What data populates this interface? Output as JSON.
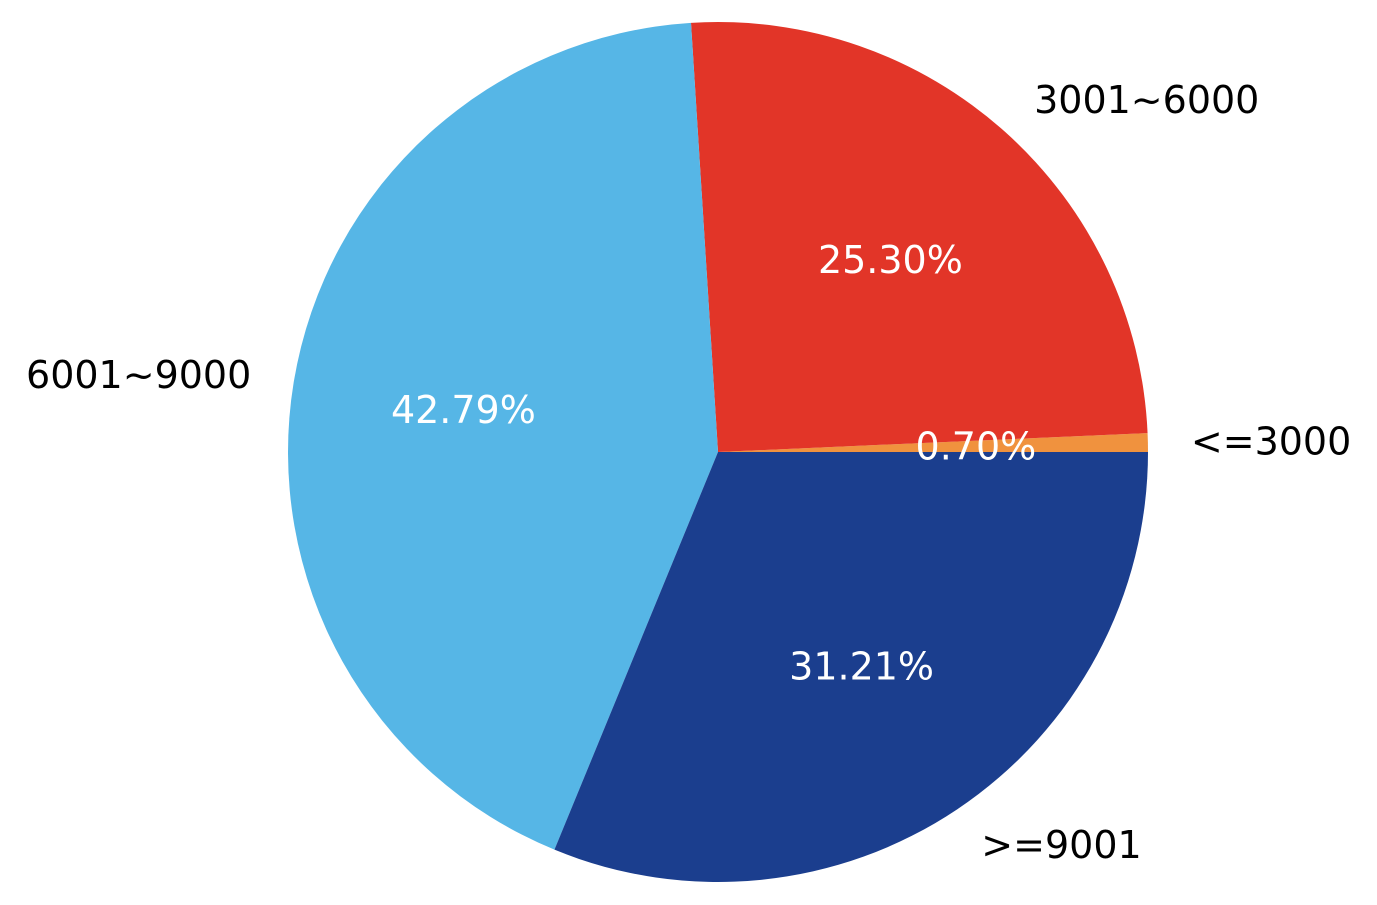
{
  "chart_data": {
    "type": "pie",
    "start_angle_deg": 0,
    "direction": "counterclockwise",
    "slices": [
      {
        "label": "<=3000",
        "value": 0.7,
        "value_label": "0.70%",
        "color": "#F0923E"
      },
      {
        "label": "3001~6000",
        "value": 25.3,
        "value_label": "25.30%",
        "color": "#E23528"
      },
      {
        "label": "6001~9000",
        "value": 42.79,
        "value_label": "42.79%",
        "color": "#56B6E6"
      },
      {
        "label": ">=9001",
        "value": 31.21,
        "value_label": "31.21%",
        "color": "#1B3E8E"
      }
    ]
  }
}
